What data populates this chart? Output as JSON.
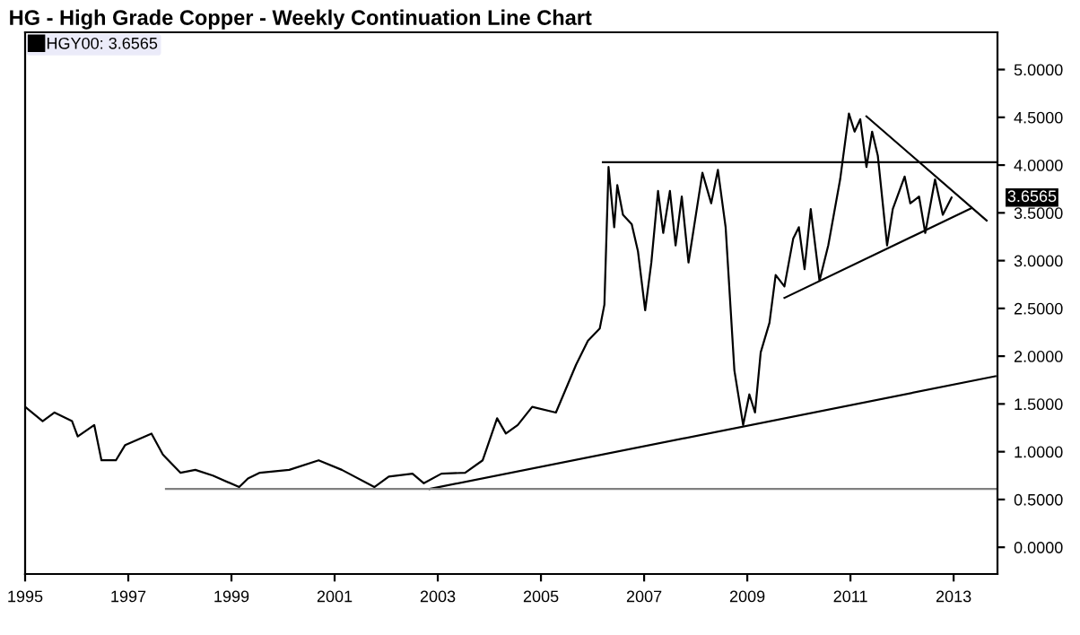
{
  "chart_data": {
    "type": "line",
    "title": "HG - High Grade Copper - Weekly Continuation Line Chart",
    "xlim": [
      1995.0,
      2013.85
    ],
    "xticks": [
      1995,
      1997,
      1999,
      2001,
      2003,
      2005,
      2007,
      2009,
      2011,
      2013
    ],
    "ylim": [
      -0.28,
      5.39
    ],
    "yticks": [
      {
        "value": 0,
        "label": "0.0000"
      },
      {
        "value": 0.5,
        "label": "0.5000"
      },
      {
        "value": 1,
        "label": "1.0000"
      },
      {
        "value": 1.5,
        "label": "1.5000"
      },
      {
        "value": 2,
        "label": "2.0000"
      },
      {
        "value": 2.5,
        "label": "2.5000"
      },
      {
        "value": 3,
        "label": "3.0000"
      },
      {
        "value": 3.5,
        "label": "3.5000"
      },
      {
        "value": 4,
        "label": "4.0000"
      },
      {
        "value": 4.5,
        "label": "4.5000"
      },
      {
        "value": 5,
        "label": "5.0000"
      }
    ],
    "grid": false,
    "legend": "top left",
    "marker": "none",
    "line_style": "solid",
    "annotations": [
      "3.6565"
    ],
    "series": [
      {
        "name": "HGY00: 3.6565",
        "color": "#000000",
        "x": [
          1995.0,
          1995.34,
          1995.57,
          1995.91,
          1996.02,
          1996.34,
          1996.48,
          1996.76,
          1996.94,
          1997.45,
          1997.67,
          1998.01,
          1998.3,
          1998.64,
          1999.15,
          1999.32,
          1999.55,
          2000.12,
          2000.69,
          2001.14,
          2001.77,
          2002.05,
          2002.51,
          2002.73,
          2003.07,
          2003.53,
          2003.87,
          2004.15,
          2004.32,
          2004.55,
          2004.83,
          2005.29,
          2005.68,
          2005.91,
          2006.14,
          2006.23,
          2006.31,
          2006.42,
          2006.48,
          2006.59,
          2006.76,
          2006.88,
          2007.02,
          2007.14,
          2007.27,
          2007.37,
          2007.5,
          2007.61,
          2007.73,
          2007.86,
          2008.13,
          2008.3,
          2008.43,
          2008.58,
          2008.75,
          2008.92,
          2009.04,
          2009.15,
          2009.26,
          2009.43,
          2009.55,
          2009.72,
          2009.89,
          2010.0,
          2010.11,
          2010.23,
          2010.4,
          2010.57,
          2010.8,
          2010.97,
          2011.08,
          2011.19,
          2011.31,
          2011.42,
          2011.53,
          2011.71,
          2011.82,
          2012.05,
          2012.16,
          2012.33,
          2012.45,
          2012.64,
          2012.79,
          2012.96
        ],
        "values": [
          1.47,
          1.32,
          1.41,
          1.32,
          1.16,
          1.28,
          0.91,
          0.91,
          1.07,
          1.19,
          0.97,
          0.78,
          0.81,
          0.75,
          0.63,
          0.72,
          0.78,
          0.81,
          0.91,
          0.81,
          0.63,
          0.74,
          0.77,
          0.67,
          0.77,
          0.78,
          0.91,
          1.35,
          1.19,
          1.28,
          1.47,
          1.41,
          1.91,
          2.16,
          2.29,
          2.54,
          3.98,
          3.35,
          3.79,
          3.48,
          3.38,
          3.1,
          2.48,
          2.98,
          3.73,
          3.29,
          3.73,
          3.16,
          3.67,
          2.98,
          3.92,
          3.6,
          3.95,
          3.35,
          1.85,
          1.28,
          1.6,
          1.41,
          2.04,
          2.35,
          2.85,
          2.73,
          3.23,
          3.35,
          2.91,
          3.54,
          2.79,
          3.16,
          3.85,
          4.54,
          4.35,
          4.48,
          3.98,
          4.35,
          4.1,
          3.16,
          3.54,
          3.88,
          3.6,
          3.67,
          3.29,
          3.85,
          3.48,
          3.66
        ]
      },
      {
        "color": "#000000",
        "x": [
          2006.2,
          2013.85
        ],
        "values": [
          4.03,
          4.03
        ]
      },
      {
        "color": "#000000",
        "x": [
          2011.31,
          2013.64
        ],
        "values": [
          4.51,
          3.42
        ]
      },
      {
        "color": "#000000",
        "x": [
          2009.72,
          2013.35
        ],
        "values": [
          2.61,
          3.55
        ]
      },
      {
        "color": "#000000",
        "x": [
          2002.84,
          2013.81
        ],
        "values": [
          0.61,
          1.79
        ]
      },
      {
        "color": "#808080",
        "x": [
          1997.73,
          2013.85
        ],
        "values": [
          0.61,
          0.61
        ]
      }
    ]
  }
}
